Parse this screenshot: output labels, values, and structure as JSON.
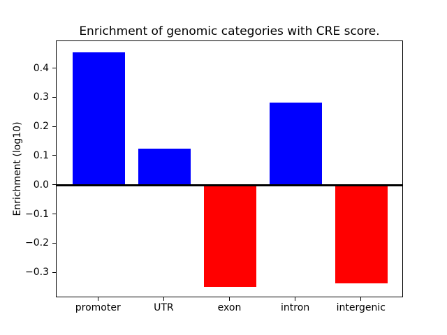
{
  "chart_data": {
    "type": "bar",
    "title": "Enrichment of genomic categories with CRE score.",
    "categories": [
      "promoter",
      "UTR",
      "exon",
      "intron",
      "intergenic"
    ],
    "values": [
      0.457,
      0.126,
      -0.347,
      0.285,
      -0.335
    ],
    "xlabel": "",
    "ylabel": "Enrichment (log10)",
    "ylim": [
      -0.386,
      0.495
    ],
    "xlim": [
      -0.64,
      4.64
    ],
    "yticks": [
      0.4,
      0.3,
      0.2,
      0.1,
      0.0,
      -0.1,
      -0.2,
      -0.3
    ],
    "bar_width": 0.8,
    "positive_color": "#0000ff",
    "negative_color": "#ff0000",
    "zero_line_color": "#000000",
    "axis_color": "#000000",
    "background_color": "#ffffff",
    "grid": false,
    "legend": "none"
  }
}
